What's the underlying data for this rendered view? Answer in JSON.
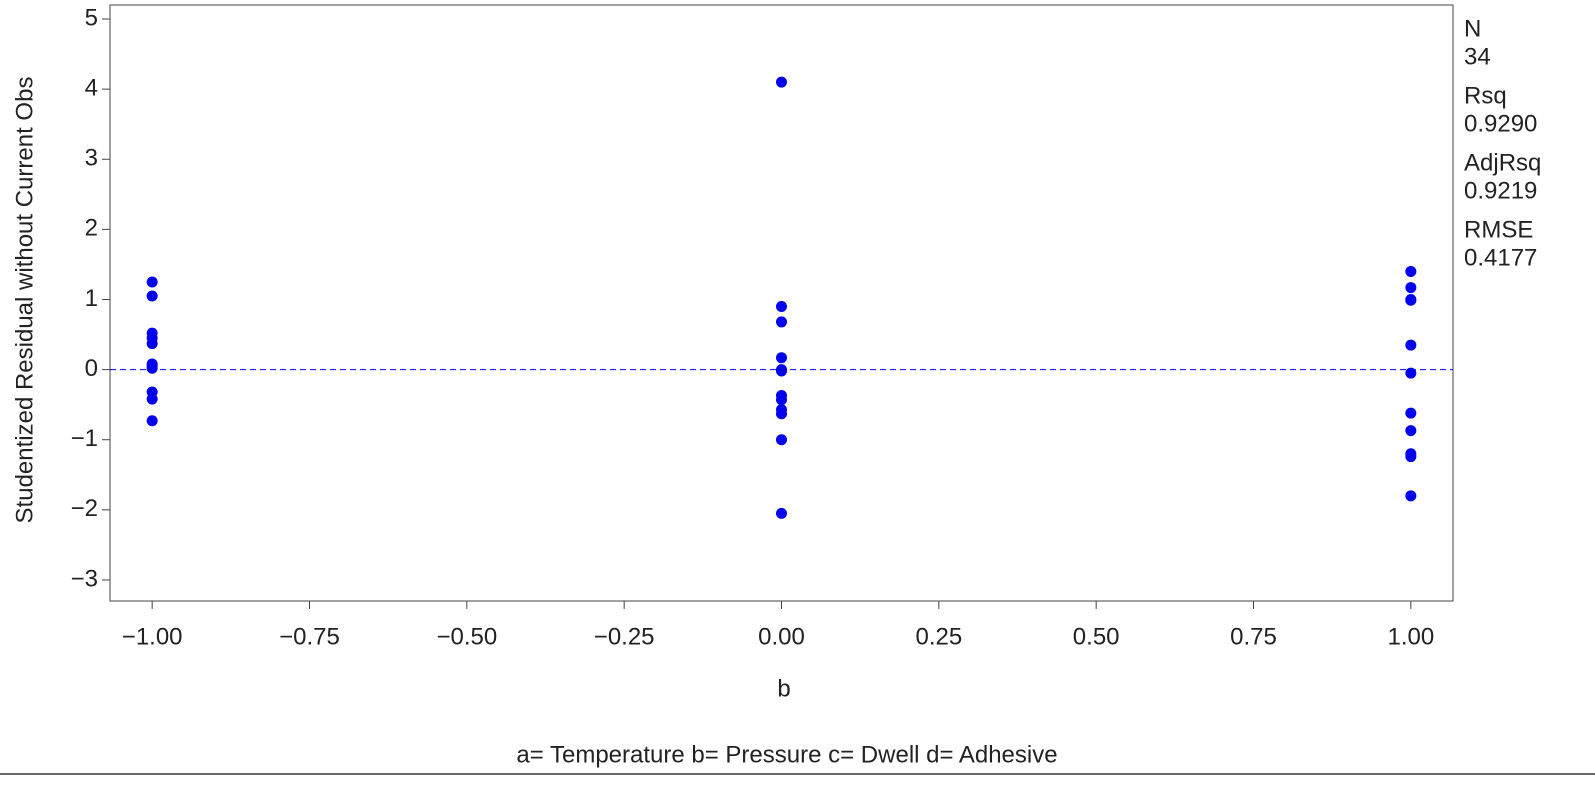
{
  "chart_data": {
    "type": "scatter",
    "x_label": "b",
    "y_label": "Studentized Residual without Current Obs",
    "footnote": "a= Temperature  b= Pressure  c= Dwell  d= Adhesive",
    "color": "#0000ee",
    "ref_line": 0,
    "xlim": [
      -1.067,
      1.067
    ],
    "ylim": [
      -3.3,
      5.2
    ],
    "xticks": [
      {
        "value": -1,
        "label": "−1.00"
      },
      {
        "value": -0.75,
        "label": "−0.75"
      },
      {
        "value": -0.5,
        "label": "−0.50"
      },
      {
        "value": -0.25,
        "label": "−0.25"
      },
      {
        "value": 0,
        "label": "0.00"
      },
      {
        "value": 0.25,
        "label": "0.25"
      },
      {
        "value": 0.5,
        "label": "0.50"
      },
      {
        "value": 0.75,
        "label": "0.75"
      },
      {
        "value": 1,
        "label": "1.00"
      }
    ],
    "yticks": [
      {
        "value": -3,
        "label": "−3"
      },
      {
        "value": -2,
        "label": "−2"
      },
      {
        "value": -1,
        "label": "−1"
      },
      0,
      1,
      2,
      3,
      4,
      5
    ],
    "x": [
      -1,
      -1,
      -1,
      -1,
      -1,
      -1,
      -1,
      -1,
      -1,
      -1,
      -1,
      0,
      0,
      0,
      0,
      0,
      0,
      0,
      0,
      0,
      0,
      0,
      0,
      1,
      1,
      1,
      1,
      1,
      1,
      1,
      1,
      1,
      1,
      1
    ],
    "y": [
      1.25,
      1.05,
      0.52,
      0.45,
      0.37,
      0.08,
      0.05,
      0.02,
      -0.32,
      -0.42,
      -0.73,
      4.1,
      0.9,
      0.68,
      0.17,
      0.0,
      -0.02,
      -0.37,
      -0.43,
      -0.57,
      -0.63,
      -1.0,
      -2.05,
      1.4,
      1.17,
      1.0,
      0.99,
      0.35,
      -0.05,
      -0.62,
      -0.87,
      -1.2,
      -1.24,
      -1.8
    ],
    "stats": [
      {
        "label": "N",
        "value": "34"
      },
      {
        "label": "Rsq",
        "value": "0.9290"
      },
      {
        "label": "AdjRsq",
        "value": "0.9219"
      },
      {
        "label": "RMSE",
        "value": "0.4177"
      }
    ]
  }
}
